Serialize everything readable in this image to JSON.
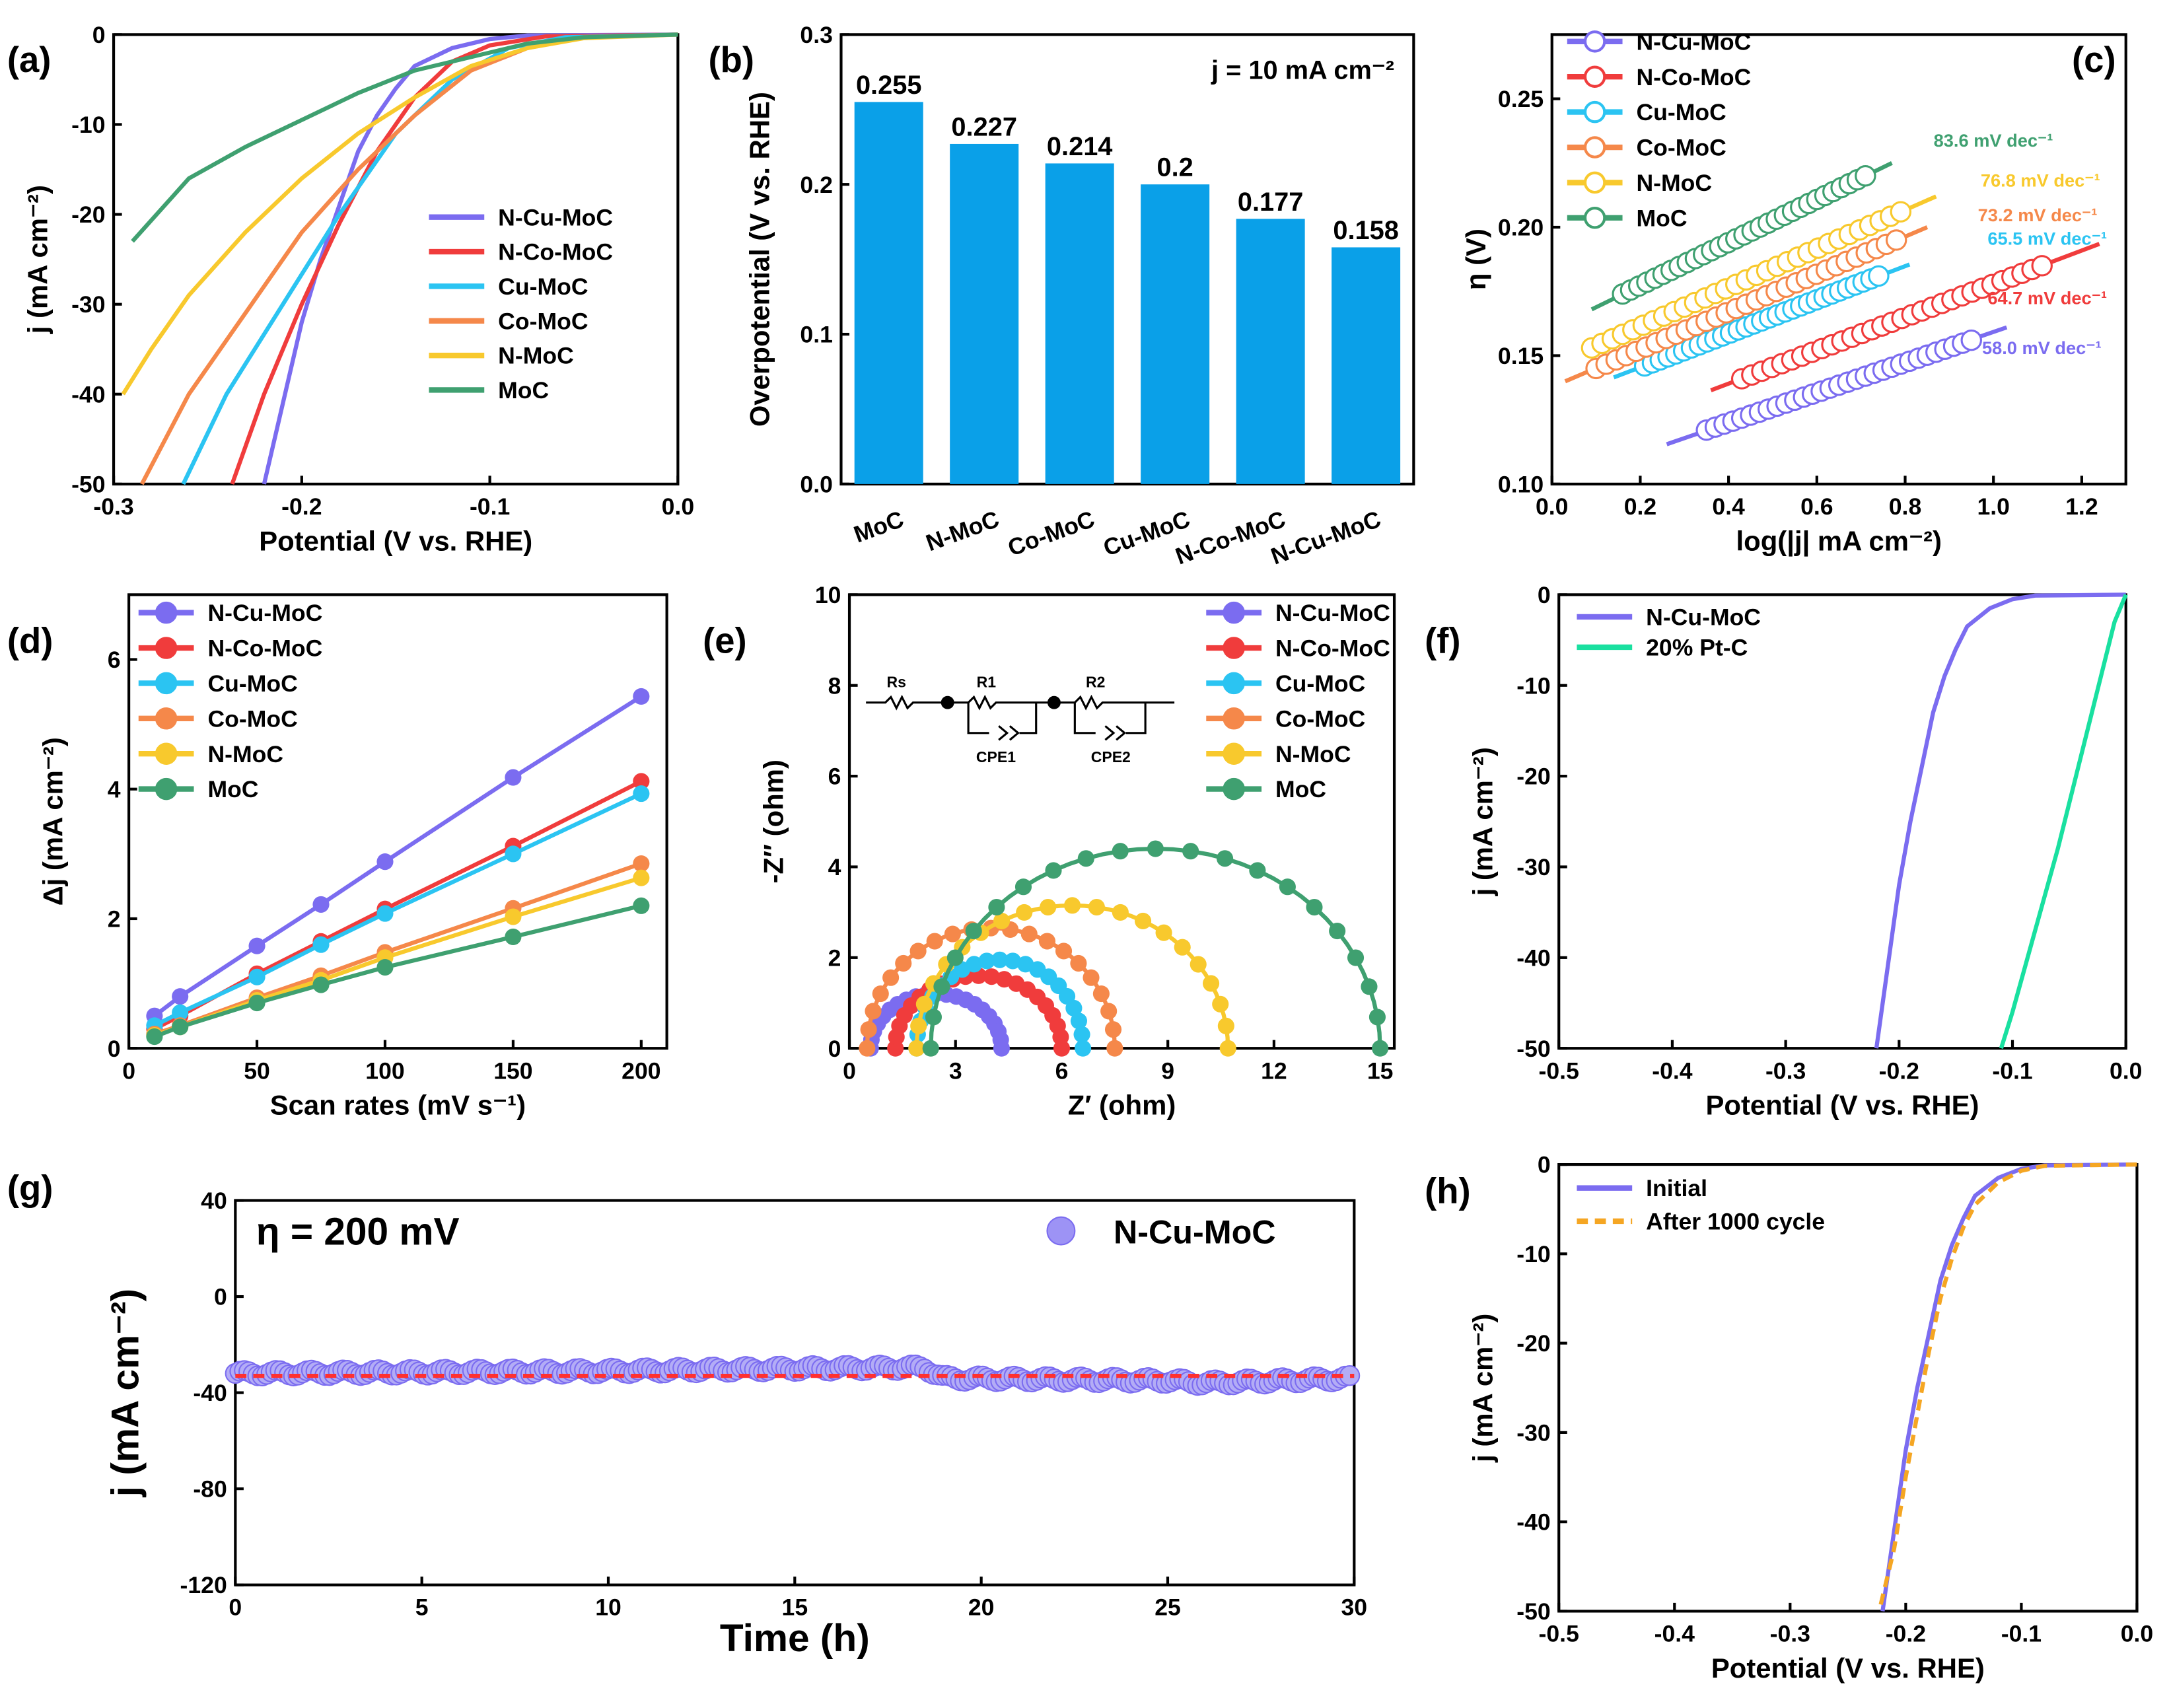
{
  "colors": {
    "N-Cu-MoC": "#7b6cf0",
    "N-Co-MoC": "#f03c3c",
    "Cu-MoC": "#2bc4f2",
    "Co-MoC": "#f5884a",
    "N-MoC": "#f8c92d",
    "MoC": "#3fa070",
    "20% Pt-C": "#19e0a0",
    "Initial": "#7b6cf0",
    "After 1000 cycle": "#f5a623",
    "bar": "#0aa0e8",
    "fitline": "#ff3030"
  },
  "chart_data": [
    {
      "panel": "(a)",
      "type": "line",
      "xlabel": "Potential (V vs. RHE)",
      "ylabel": "j (mA cm⁻²)",
      "xlim": [
        -0.3,
        0
      ],
      "ylim": [
        -50,
        0
      ],
      "xticks": [
        "-0.3",
        "-0.2",
        "-0.1",
        "0.0"
      ],
      "yticks": [
        "-50",
        "-40",
        "-30",
        "-20",
        "-10",
        "0"
      ],
      "legend_position": "right",
      "series": [
        {
          "name": "N-Cu-MoC",
          "points": [
            [
              0,
              0
            ],
            [
              -0.08,
              -0.1
            ],
            [
              -0.1,
              -0.5
            ],
            [
              -0.12,
              -1.5
            ],
            [
              -0.14,
              -3.5
            ],
            [
              -0.15,
              -6
            ],
            [
              -0.16,
              -9
            ],
            [
              -0.17,
              -13
            ],
            [
              -0.18,
              -19
            ],
            [
              -0.19,
              -25
            ],
            [
              -0.2,
              -32
            ],
            [
              -0.21,
              -41
            ],
            [
              -0.22,
              -50
            ]
          ]
        },
        {
          "name": "N-Co-MoC",
          "points": [
            [
              0,
              0
            ],
            [
              -0.07,
              -0.2
            ],
            [
              -0.1,
              -1.2
            ],
            [
              -0.12,
              -3
            ],
            [
              -0.14,
              -7
            ],
            [
              -0.16,
              -13
            ],
            [
              -0.18,
              -21
            ],
            [
              -0.2,
              -30
            ],
            [
              -0.22,
              -40
            ],
            [
              -0.237,
              -50
            ]
          ]
        },
        {
          "name": "Cu-MoC",
          "points": [
            [
              0,
              0
            ],
            [
              -0.06,
              -0.3
            ],
            [
              -0.09,
              -1.5
            ],
            [
              -0.12,
              -5
            ],
            [
              -0.15,
              -11
            ],
            [
              -0.18,
              -20
            ],
            [
              -0.21,
              -30
            ],
            [
              -0.24,
              -40
            ],
            [
              -0.263,
              -50
            ]
          ]
        },
        {
          "name": "Co-MoC",
          "points": [
            [
              0,
              0
            ],
            [
              -0.05,
              -0.3
            ],
            [
              -0.08,
              -1.5
            ],
            [
              -0.11,
              -4
            ],
            [
              -0.14,
              -9
            ],
            [
              -0.17,
              -15
            ],
            [
              -0.2,
              -22
            ],
            [
              -0.23,
              -31
            ],
            [
              -0.26,
              -40
            ],
            [
              -0.285,
              -50
            ]
          ]
        },
        {
          "name": "N-MoC",
          "points": [
            [
              0,
              0
            ],
            [
              -0.05,
              -0.4
            ],
            [
              -0.08,
              -1.5
            ],
            [
              -0.11,
              -3.5
            ],
            [
              -0.14,
              -7
            ],
            [
              -0.17,
              -11
            ],
            [
              -0.2,
              -16
            ],
            [
              -0.23,
              -22
            ],
            [
              -0.26,
              -29
            ],
            [
              -0.28,
              -35
            ],
            [
              -0.295,
              -40
            ]
          ]
        },
        {
          "name": "MoC",
          "points": [
            [
              0,
              0
            ],
            [
              -0.05,
              -0.3
            ],
            [
              -0.08,
              -1
            ],
            [
              -0.11,
              -2.5
            ],
            [
              -0.14,
              -4
            ],
            [
              -0.17,
              -6.5
            ],
            [
              -0.2,
              -9.5
            ],
            [
              -0.23,
              -12.5
            ],
            [
              -0.26,
              -16
            ],
            [
              -0.29,
              -23
            ]
          ]
        }
      ]
    },
    {
      "panel": "(b)",
      "type": "bar",
      "ylabel": "Overpotential (V vs. RHE)",
      "annotation": "j = 10 mA cm⁻²",
      "ylim": [
        0,
        0.3
      ],
      "yticks": [
        "0.0",
        "0.1",
        "0.2",
        "0.3"
      ],
      "categories": [
        "MoC",
        "N-MoC",
        "Co-MoC",
        "Cu-MoC",
        "N-Co-MoC",
        "N-Cu-MoC"
      ],
      "values": [
        0.255,
        0.227,
        0.214,
        0.2,
        0.177,
        0.158
      ],
      "value_labels": [
        "0.255",
        "0.227",
        "0.214",
        "0.2",
        "0.177",
        "0.158"
      ]
    },
    {
      "panel": "(c)",
      "type": "scatter",
      "xlabel": "log(|j| mA cm⁻²)",
      "ylabel": "η (V)",
      "xlim": [
        0,
        1.3
      ],
      "ylim": [
        0.1,
        0.275
      ],
      "xticks": [
        "0.0",
        "0.2",
        "0.4",
        "0.6",
        "0.8",
        "1.0",
        "1.2"
      ],
      "yticks": [
        "0.10",
        "0.15",
        "0.20",
        "0.25"
      ],
      "legend_position": "top-left",
      "series": [
        {
          "name": "N-Cu-MoC",
          "tafel": "58.0 mV dec⁻¹",
          "data": [
            [
              0.35,
              0.121
            ],
            [
              0.95,
              0.156
            ]
          ],
          "fit": [
            [
              0.26,
              0.1155
            ],
            [
              1.03,
              0.161
            ]
          ]
        },
        {
          "name": "N-Co-MoC",
          "tafel": "64.7 mV dec⁻¹",
          "data": [
            [
              0.43,
              0.141
            ],
            [
              1.11,
              0.185
            ]
          ],
          "fit": [
            [
              0.36,
              0.1365
            ],
            [
              1.24,
              0.1935
            ]
          ]
        },
        {
          "name": "Cu-MoC",
          "tafel": "65.5 mV dec⁻¹",
          "data": [
            [
              0.21,
              0.146
            ],
            [
              0.74,
              0.181
            ]
          ],
          "fit": [
            [
              0.14,
              0.1415
            ],
            [
              0.81,
              0.1855
            ]
          ]
        },
        {
          "name": "Co-MoC",
          "tafel": "73.2 mV dec⁻¹",
          "data": [
            [
              0.1,
              0.145
            ],
            [
              0.78,
              0.195
            ]
          ],
          "fit": [
            [
              0.03,
              0.14
            ],
            [
              0.85,
              0.2
            ]
          ]
        },
        {
          "name": "N-MoC",
          "tafel": "76.8 mV dec⁻¹",
          "data": [
            [
              0.09,
              0.153
            ],
            [
              0.79,
              0.206
            ]
          ],
          "fit": [
            [
              0.08,
              0.152
            ],
            [
              0.87,
              0.212
            ]
          ]
        },
        {
          "name": "MoC",
          "tafel": "83.6 mV dec⁻¹",
          "data": [
            [
              0.16,
              0.174
            ],
            [
              0.71,
              0.22
            ]
          ],
          "fit": [
            [
              0.09,
              0.168
            ],
            [
              0.77,
              0.225
            ]
          ]
        }
      ]
    },
    {
      "panel": "(d)",
      "type": "line",
      "xlabel": "Scan rates (mV s⁻¹)",
      "ylabel": "Δj (mA cm⁻²)",
      "xlim": [
        0,
        210
      ],
      "ylim": [
        0,
        7
      ],
      "xticks": [
        "0",
        "50",
        "100",
        "150",
        "200"
      ],
      "yticks": [
        "0",
        "2",
        "4",
        "6"
      ],
      "legend_position": "top-left",
      "x": [
        10,
        20,
        50,
        75,
        100,
        150,
        200
      ],
      "series": [
        {
          "name": "N-Cu-MoC",
          "values": [
            0.5,
            0.8,
            1.58,
            2.22,
            2.88,
            4.18,
            5.43
          ]
        },
        {
          "name": "N-Co-MoC",
          "values": [
            0.3,
            0.5,
            1.15,
            1.65,
            2.15,
            3.12,
            4.12
          ]
        },
        {
          "name": "Cu-MoC",
          "values": [
            0.35,
            0.55,
            1.1,
            1.6,
            2.08,
            3.0,
            3.93
          ]
        },
        {
          "name": "Co-MoC",
          "values": [
            0.22,
            0.35,
            0.78,
            1.12,
            1.48,
            2.16,
            2.85
          ]
        },
        {
          "name": "N-MoC",
          "values": [
            0.2,
            0.33,
            0.74,
            1.05,
            1.4,
            2.03,
            2.63
          ]
        },
        {
          "name": "MoC",
          "values": [
            0.18,
            0.33,
            0.7,
            0.98,
            1.25,
            1.72,
            2.2
          ]
        }
      ]
    },
    {
      "panel": "(e)",
      "type": "scatter",
      "xlabel": "Z′ (ohm)",
      "ylabel": "-Z″ (ohm)",
      "xlim": [
        0,
        15.4
      ],
      "ylim": [
        0,
        10
      ],
      "xticks": [
        "0",
        "3",
        "6",
        "9",
        "12",
        "15"
      ],
      "yticks": [
        "0",
        "2",
        "4",
        "6",
        "8",
        "10"
      ],
      "legend_position": "top-right",
      "circuit": {
        "labels": [
          "Rs",
          "R1",
          "R2",
          "CPE1",
          "CPE2"
        ]
      },
      "series": [
        {
          "name": "N-Cu-MoC",
          "z_start": 0.6,
          "z_end": 4.3,
          "peak": 1.2
        },
        {
          "name": "N-Co-MoC",
          "z_start": 1.3,
          "z_end": 6.0,
          "peak": 1.6
        },
        {
          "name": "Cu-MoC",
          "z_start": 1.9,
          "z_end": 6.6,
          "peak": 1.95
        },
        {
          "name": "Co-MoC",
          "z_start": 0.5,
          "z_end": 7.5,
          "peak": 2.65
        },
        {
          "name": "N-MoC",
          "z_start": 1.9,
          "z_end": 10.7,
          "peak": 3.15
        },
        {
          "name": "MoC",
          "z_start": 2.3,
          "z_end": 15.0,
          "peak": 4.4
        }
      ]
    },
    {
      "panel": "(f)",
      "type": "line",
      "xlabel": "Potential (V vs. RHE)",
      "ylabel": "j (mA cm⁻²)",
      "xlim": [
        -0.5,
        0
      ],
      "ylim": [
        -50,
        0
      ],
      "xticks": [
        "-0.5",
        "-0.4",
        "-0.3",
        "-0.2",
        "-0.1",
        "0.0"
      ],
      "yticks": [
        "-50",
        "-40",
        "-30",
        "-20",
        "-10",
        "0"
      ],
      "legend_position": "top-left",
      "series": [
        {
          "name": "N-Cu-MoC",
          "points": [
            [
              0,
              0
            ],
            [
              -0.08,
              -0.1
            ],
            [
              -0.1,
              -0.5
            ],
            [
              -0.12,
              -1.5
            ],
            [
              -0.14,
              -3.5
            ],
            [
              -0.15,
              -6
            ],
            [
              -0.16,
              -9
            ],
            [
              -0.17,
              -13
            ],
            [
              -0.18,
              -19
            ],
            [
              -0.19,
              -25
            ],
            [
              -0.2,
              -32
            ],
            [
              -0.21,
              -41
            ],
            [
              -0.22,
              -50
            ]
          ]
        },
        {
          "name": "20% Pt-C",
          "points": [
            [
              0,
              0
            ],
            [
              -0.01,
              -3
            ],
            [
              -0.02,
              -8
            ],
            [
              -0.04,
              -18
            ],
            [
              -0.06,
              -28
            ],
            [
              -0.08,
              -37
            ],
            [
              -0.1,
              -46
            ],
            [
              -0.11,
              -50
            ]
          ]
        }
      ]
    },
    {
      "panel": "(g)",
      "type": "scatter",
      "xlabel": "Time (h)",
      "ylabel": "j (mA cm⁻²)",
      "annotation": "η = 200 mV",
      "xlim": [
        0,
        30
      ],
      "ylim": [
        -120,
        40
      ],
      "xticks": [
        "0",
        "5",
        "10",
        "15",
        "20",
        "25",
        "30"
      ],
      "yticks": [
        "-120",
        "-80",
        "-40",
        "0",
        "40"
      ],
      "legend_position": "top-right",
      "series": [
        {
          "name": "N-Cu-MoC",
          "points": [
            [
              0,
              -32
            ],
            [
              5,
              -31.5
            ],
            [
              10,
              -31
            ],
            [
              15,
              -30
            ],
            [
              18.5,
              -29.5
            ],
            [
              19,
              -34
            ],
            [
              25,
              -35
            ],
            [
              26,
              -36
            ],
            [
              30,
              -34
            ]
          ]
        }
      ],
      "reference_line": -33
    },
    {
      "panel": "(h)",
      "type": "line",
      "xlabel": "Potential (V vs. RHE)",
      "ylabel": "j (mA cm⁻²)",
      "xlim": [
        -0.5,
        0
      ],
      "ylim": [
        -50,
        0
      ],
      "xticks": [
        "-0.5",
        "-0.4",
        "-0.3",
        "-0.2",
        "-0.1",
        "0.0"
      ],
      "yticks": [
        "-50",
        "-40",
        "-30",
        "-20",
        "-10",
        "0"
      ],
      "legend_position": "top-left",
      "series": [
        {
          "name": "Initial",
          "points": [
            [
              0,
              0
            ],
            [
              -0.08,
              -0.1
            ],
            [
              -0.1,
              -0.5
            ],
            [
              -0.12,
              -1.5
            ],
            [
              -0.14,
              -3.5
            ],
            [
              -0.15,
              -6
            ],
            [
              -0.16,
              -9
            ],
            [
              -0.17,
              -13
            ],
            [
              -0.18,
              -19
            ],
            [
              -0.19,
              -25
            ],
            [
              -0.2,
              -32
            ],
            [
              -0.21,
              -41
            ],
            [
              -0.22,
              -50
            ]
          ]
        },
        {
          "name": "After 1000 cycle",
          "points": [
            [
              0,
              0
            ],
            [
              -0.08,
              -0.15
            ],
            [
              -0.1,
              -0.7
            ],
            [
              -0.12,
              -2
            ],
            [
              -0.14,
              -4.5
            ],
            [
              -0.15,
              -7
            ],
            [
              -0.16,
              -10.5
            ],
            [
              -0.17,
              -15
            ],
            [
              -0.18,
              -21
            ],
            [
              -0.19,
              -28
            ],
            [
              -0.2,
              -35
            ],
            [
              -0.21,
              -43
            ],
            [
              -0.223,
              -50
            ]
          ]
        }
      ]
    }
  ]
}
